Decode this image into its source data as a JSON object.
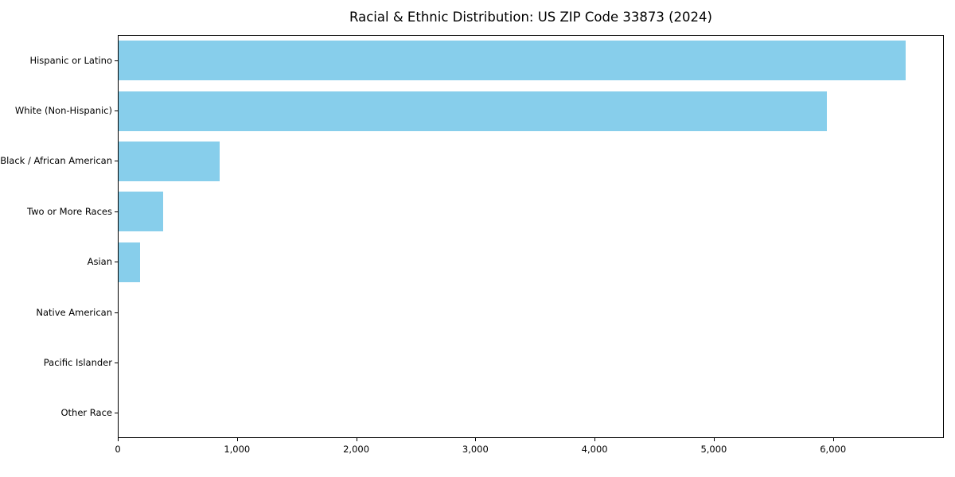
{
  "chart_data": {
    "type": "bar",
    "orientation": "horizontal",
    "title": "Racial & Ethnic Distribution: US ZIP Code 33873 (2024)",
    "xlabel": "",
    "ylabel": "",
    "categories": [
      "Hispanic or Latino",
      "White (Non-Hispanic)",
      "Black / African American",
      "Two or More Races",
      "Asian",
      "Native American",
      "Pacific Islander",
      "Other Race"
    ],
    "values": [
      6600,
      5940,
      850,
      375,
      180,
      0,
      0,
      0
    ],
    "xlim": [
      0,
      6930
    ],
    "xticks": [
      0,
      1000,
      2000,
      3000,
      4000,
      5000,
      6000
    ],
    "xtick_labels": [
      "0",
      "1,000",
      "2,000",
      "3,000",
      "4,000",
      "5,000",
      "6,000"
    ],
    "grid": false,
    "legend": "none",
    "bar_color": "#87CEEB"
  },
  "colors": {
    "bar": "#87CEEB",
    "axis": "#000000",
    "text": "#000000",
    "background": "#FFFFFF"
  }
}
